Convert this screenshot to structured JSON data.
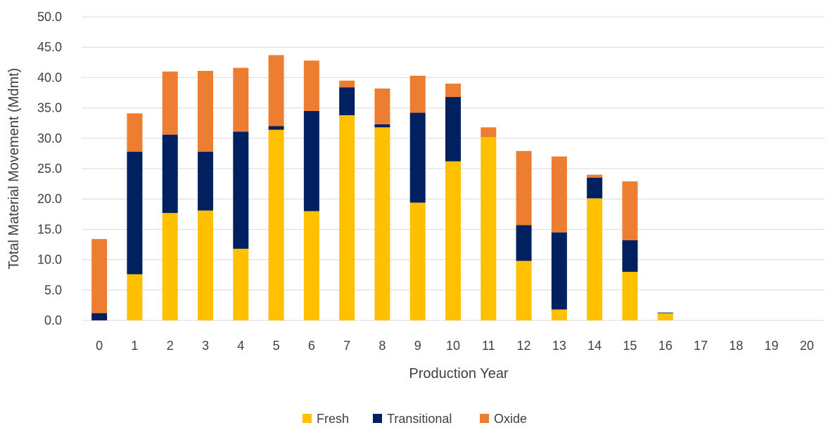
{
  "chart_data": {
    "type": "bar",
    "stacked": true,
    "title": "",
    "xlabel": "Production Year",
    "ylabel": "Total Material Movement (Mdmt)",
    "ylim": [
      0,
      50
    ],
    "ytick_step": 5,
    "ytick_labels": [
      "0.0",
      "5.0",
      "10.0",
      "15.0",
      "20.0",
      "25.0",
      "30.0",
      "35.0",
      "40.0",
      "45.0",
      "50.0"
    ],
    "grid": true,
    "legend_position": "bottom",
    "categories": [
      "0",
      "1",
      "2",
      "3",
      "4",
      "5",
      "6",
      "7",
      "8",
      "9",
      "10",
      "11",
      "12",
      "13",
      "14",
      "15",
      "16",
      "17",
      "18",
      "19",
      "20"
    ],
    "series": [
      {
        "name": "Fresh",
        "color": "#FFC000",
        "values": [
          0.0,
          7.6,
          17.7,
          18.1,
          11.8,
          31.4,
          18.0,
          33.8,
          31.8,
          19.4,
          26.2,
          30.2,
          9.8,
          1.8,
          20.1,
          8.0,
          1.2,
          0,
          0,
          0,
          0
        ]
      },
      {
        "name": "Transitional",
        "color": "#002060",
        "values": [
          1.2,
          20.2,
          12.9,
          9.7,
          19.3,
          0.6,
          16.5,
          4.6,
          0.5,
          14.8,
          10.6,
          0.0,
          5.9,
          12.7,
          3.4,
          5.2,
          0.1,
          0,
          0,
          0,
          0
        ]
      },
      {
        "name": "Oxide",
        "color": "#ED7D31",
        "values": [
          12.2,
          6.3,
          10.4,
          13.3,
          10.5,
          11.7,
          8.3,
          1.1,
          5.9,
          6.1,
          2.2,
          1.6,
          12.2,
          12.5,
          0.5,
          9.7,
          0.0,
          0,
          0,
          0,
          0
        ]
      }
    ]
  }
}
